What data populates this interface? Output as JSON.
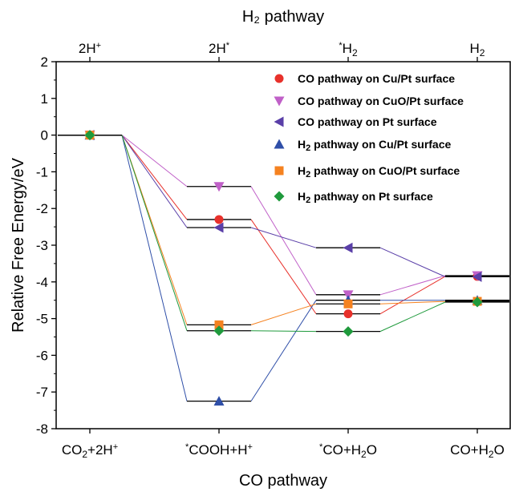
{
  "chart_data": {
    "type": "line",
    "title": "",
    "xlabel": "CO pathway",
    "x2label": "H₂ pathway",
    "ylabel": "Relative Free Energy/eV",
    "ylim": [
      -8,
      2
    ],
    "yticks": [
      2,
      1,
      0,
      -1,
      -2,
      -3,
      -4,
      -5,
      -6,
      -7,
      -8
    ],
    "grid": false,
    "legend_position": "top-right",
    "categories": [
      {
        "main": "CO",
        "sub": "2",
        "rest": "+2H",
        "sup": "+"
      },
      {
        "pre": "*",
        "main": "COOH+H",
        "sup": "+"
      },
      {
        "pre": "*",
        "main": "CO+H",
        "sub": "2",
        "rest": "O"
      },
      {
        "main": "CO+H",
        "sub": "2",
        "rest": "O"
      }
    ],
    "top_categories": [
      {
        "main": "2H",
        "sup": "+"
      },
      {
        "main": "2H",
        "sup": "*"
      },
      {
        "pre": "*",
        "main": "H",
        "sub": "2"
      },
      {
        "main": "H",
        "sub": "2"
      }
    ],
    "series": [
      {
        "name": "CO pathway on Cu/Pt surface",
        "legend_main": "CO pathway on Cu/Pt surface",
        "legend_sub": "",
        "legend_rest": "",
        "marker": "circle",
        "color": "#e8312b",
        "values": [
          0,
          -2.3,
          -4.87,
          -3.85
        ]
      },
      {
        "name": "CO pathway on CuO/Pt surface",
        "legend_main": "CO pathway on CuO/Pt surface",
        "legend_sub": "",
        "legend_rest": "",
        "marker": "triangle-down",
        "color": "#c060c8",
        "values": [
          0,
          -1.4,
          -4.35,
          -3.83
        ]
      },
      {
        "name": "CO pathway on Pt surface",
        "legend_main": "CO pathway on Pt surface",
        "legend_sub": "",
        "legend_rest": "",
        "marker": "triangle-left",
        "color": "#5a3fa8",
        "values": [
          0,
          -2.52,
          -3.07,
          -3.86
        ]
      },
      {
        "name": "H2 pathway on Cu/Pt surface",
        "legend_main": "H",
        "legend_sub": "2",
        "legend_rest": " pathway on Cu/Pt surface",
        "marker": "triangle-up",
        "color": "#2f4fa8",
        "values": [
          0,
          -7.25,
          -4.5,
          -4.5
        ]
      },
      {
        "name": "H2 pathway on CuO/Pt surface",
        "legend_main": "H",
        "legend_sub": "2",
        "legend_rest": " pathway on CuO/Pt surface",
        "marker": "square",
        "color": "#f58220",
        "values": [
          0,
          -5.17,
          -4.6,
          -4.53
        ]
      },
      {
        "name": "H2 pathway on Pt surface",
        "legend_main": "H",
        "legend_sub": "2",
        "legend_rest": " pathway on Pt surface",
        "marker": "diamond",
        "color": "#1f9a3c",
        "values": [
          0,
          -5.33,
          -5.35,
          -4.55
        ]
      }
    ]
  }
}
